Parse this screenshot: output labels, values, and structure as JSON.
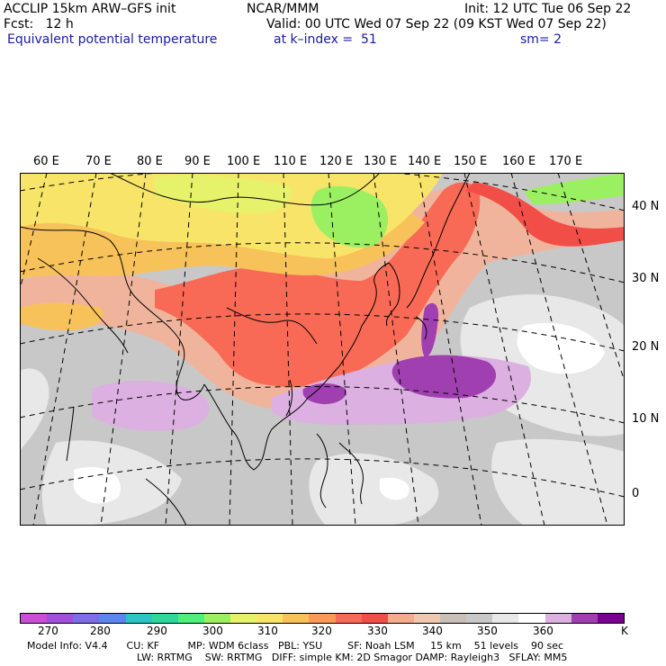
{
  "header": {
    "model": "ACCLIP 15km ARW–GFS init",
    "org": "NCAR/MMM",
    "init": "Init: 12 UTC Tue 06 Sep 22",
    "fcst": "Fcst:   12 h",
    "valid": "Valid: 00 UTC Wed 07 Sep 22 (09 KST Wed 07 Sep 22)",
    "field": "Equivalent potential temperature",
    "level": "at k–index =  51",
    "smooth": "sm= 2"
  },
  "map": {
    "lon_labels": [
      "60 E",
      "70 E",
      "80 E",
      "90 E",
      "100 E",
      "110 E",
      "120 E",
      "130 E",
      "140 E",
      "150 E",
      "160 E",
      "170 E"
    ],
    "lat_labels": [
      "40 N",
      "30 N",
      "20 N",
      "10 N",
      "0"
    ]
  },
  "colorbar": {
    "colors": [
      "#c94fd4",
      "#a34fdc",
      "#7d6ee8",
      "#5a86ee",
      "#2bc4c4",
      "#2ed89b",
      "#4ef07a",
      "#9af060",
      "#e6f26a",
      "#f9e46a",
      "#f8c25a",
      "#f89a5a",
      "#f86a55",
      "#f24e48",
      "#f4ac8c",
      "#f0c8b0",
      "#c8c0b8",
      "#c8c8c8",
      "#e8e8e8",
      "#ffffff",
      "#dcb0e0",
      "#a040b0",
      "#7a0090"
    ],
    "labels": [
      "270",
      "280",
      "290",
      "300",
      "310",
      "320",
      "330",
      "340",
      "350",
      "360"
    ],
    "unit": "K"
  },
  "footer": {
    "line1": "Model Info: V4.4      CU: KF         MP: WDM 6class   PBL: YSU        SF: Noah LSM     15 km    51 levels    90 sec",
    "line2": "LW: RRTMG    SW: RRTMG   DIFF: simple KM: 2D Smagor DAMP: Rayleigh3   SFLAY: MM5"
  }
}
